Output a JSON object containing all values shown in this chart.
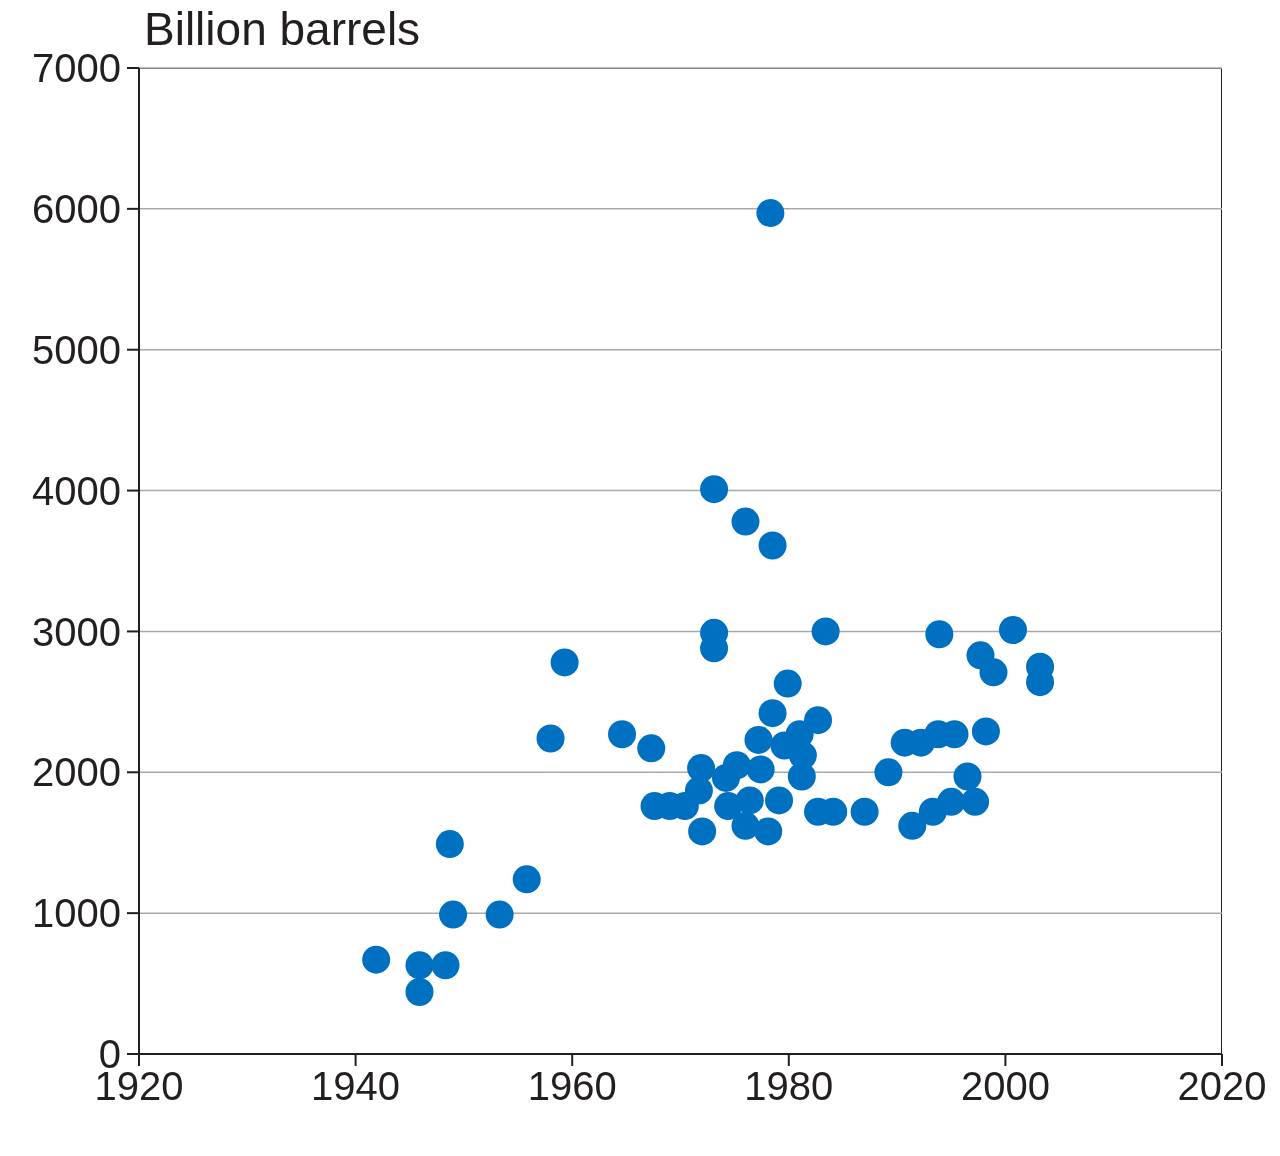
{
  "chart_data": {
    "type": "scatter",
    "ylabel": "Billion barrels",
    "xlim": [
      1920,
      2020
    ],
    "xticks": [
      1920,
      1940,
      1960,
      1980,
      2000,
      2020
    ],
    "ylim": [
      0,
      7000
    ],
    "yticks": [
      0,
      1000,
      2000,
      3000,
      4000,
      5000,
      6000,
      7000
    ],
    "grid": "y",
    "marker": "circle",
    "legend": false,
    "series": [
      {
        "color": "#0070c0",
        "x": [
          1941.9,
          1945.9,
          1945.9,
          1948.3,
          1948.7,
          1949.0,
          1953.3,
          1955.8,
          1958.0,
          1959.3,
          1964.6,
          1967.3,
          1967.6,
          1969.0,
          1970.4,
          1971.7,
          1971.9,
          1972.0,
          1973.1,
          1973.1,
          1973.1,
          1974.2,
          1974.4,
          1975.2,
          1976.0,
          1976.0,
          1976.4,
          1977.2,
          1977.4,
          1978.1,
          1978.3,
          1978.5,
          1978.5,
          1979.1,
          1979.6,
          1979.9,
          1981.0,
          1981.3,
          1981.2,
          1982.7,
          1982.7,
          1983.4,
          1984.1,
          1987.0,
          1989.2,
          1990.7,
          1991.4,
          1992.2,
          1993.3,
          1993.8,
          1993.9,
          1995.0,
          1995.3,
          1996.5,
          1997.2,
          1997.7,
          1998.2,
          1998.9,
          2000.7,
          2003.2,
          2003.2
        ],
        "values": [
          670,
          630,
          440,
          630,
          1490,
          990,
          990,
          1240,
          2240,
          2780,
          2270,
          2170,
          1760,
          1760,
          1760,
          1870,
          2030,
          1580,
          4010,
          2990,
          2880,
          1960,
          1760,
          2050,
          3780,
          1620,
          1800,
          2230,
          2020,
          1580,
          5970,
          3610,
          2420,
          1800,
          2190,
          2630,
          2270,
          2120,
          1970,
          2370,
          1720,
          3000,
          1720,
          1720,
          2000,
          2210,
          1620,
          2210,
          1720,
          2270,
          2980,
          1790,
          2270,
          1970,
          1790,
          2830,
          2290,
          2710,
          3010,
          2750,
          2640
        ]
      }
    ]
  }
}
